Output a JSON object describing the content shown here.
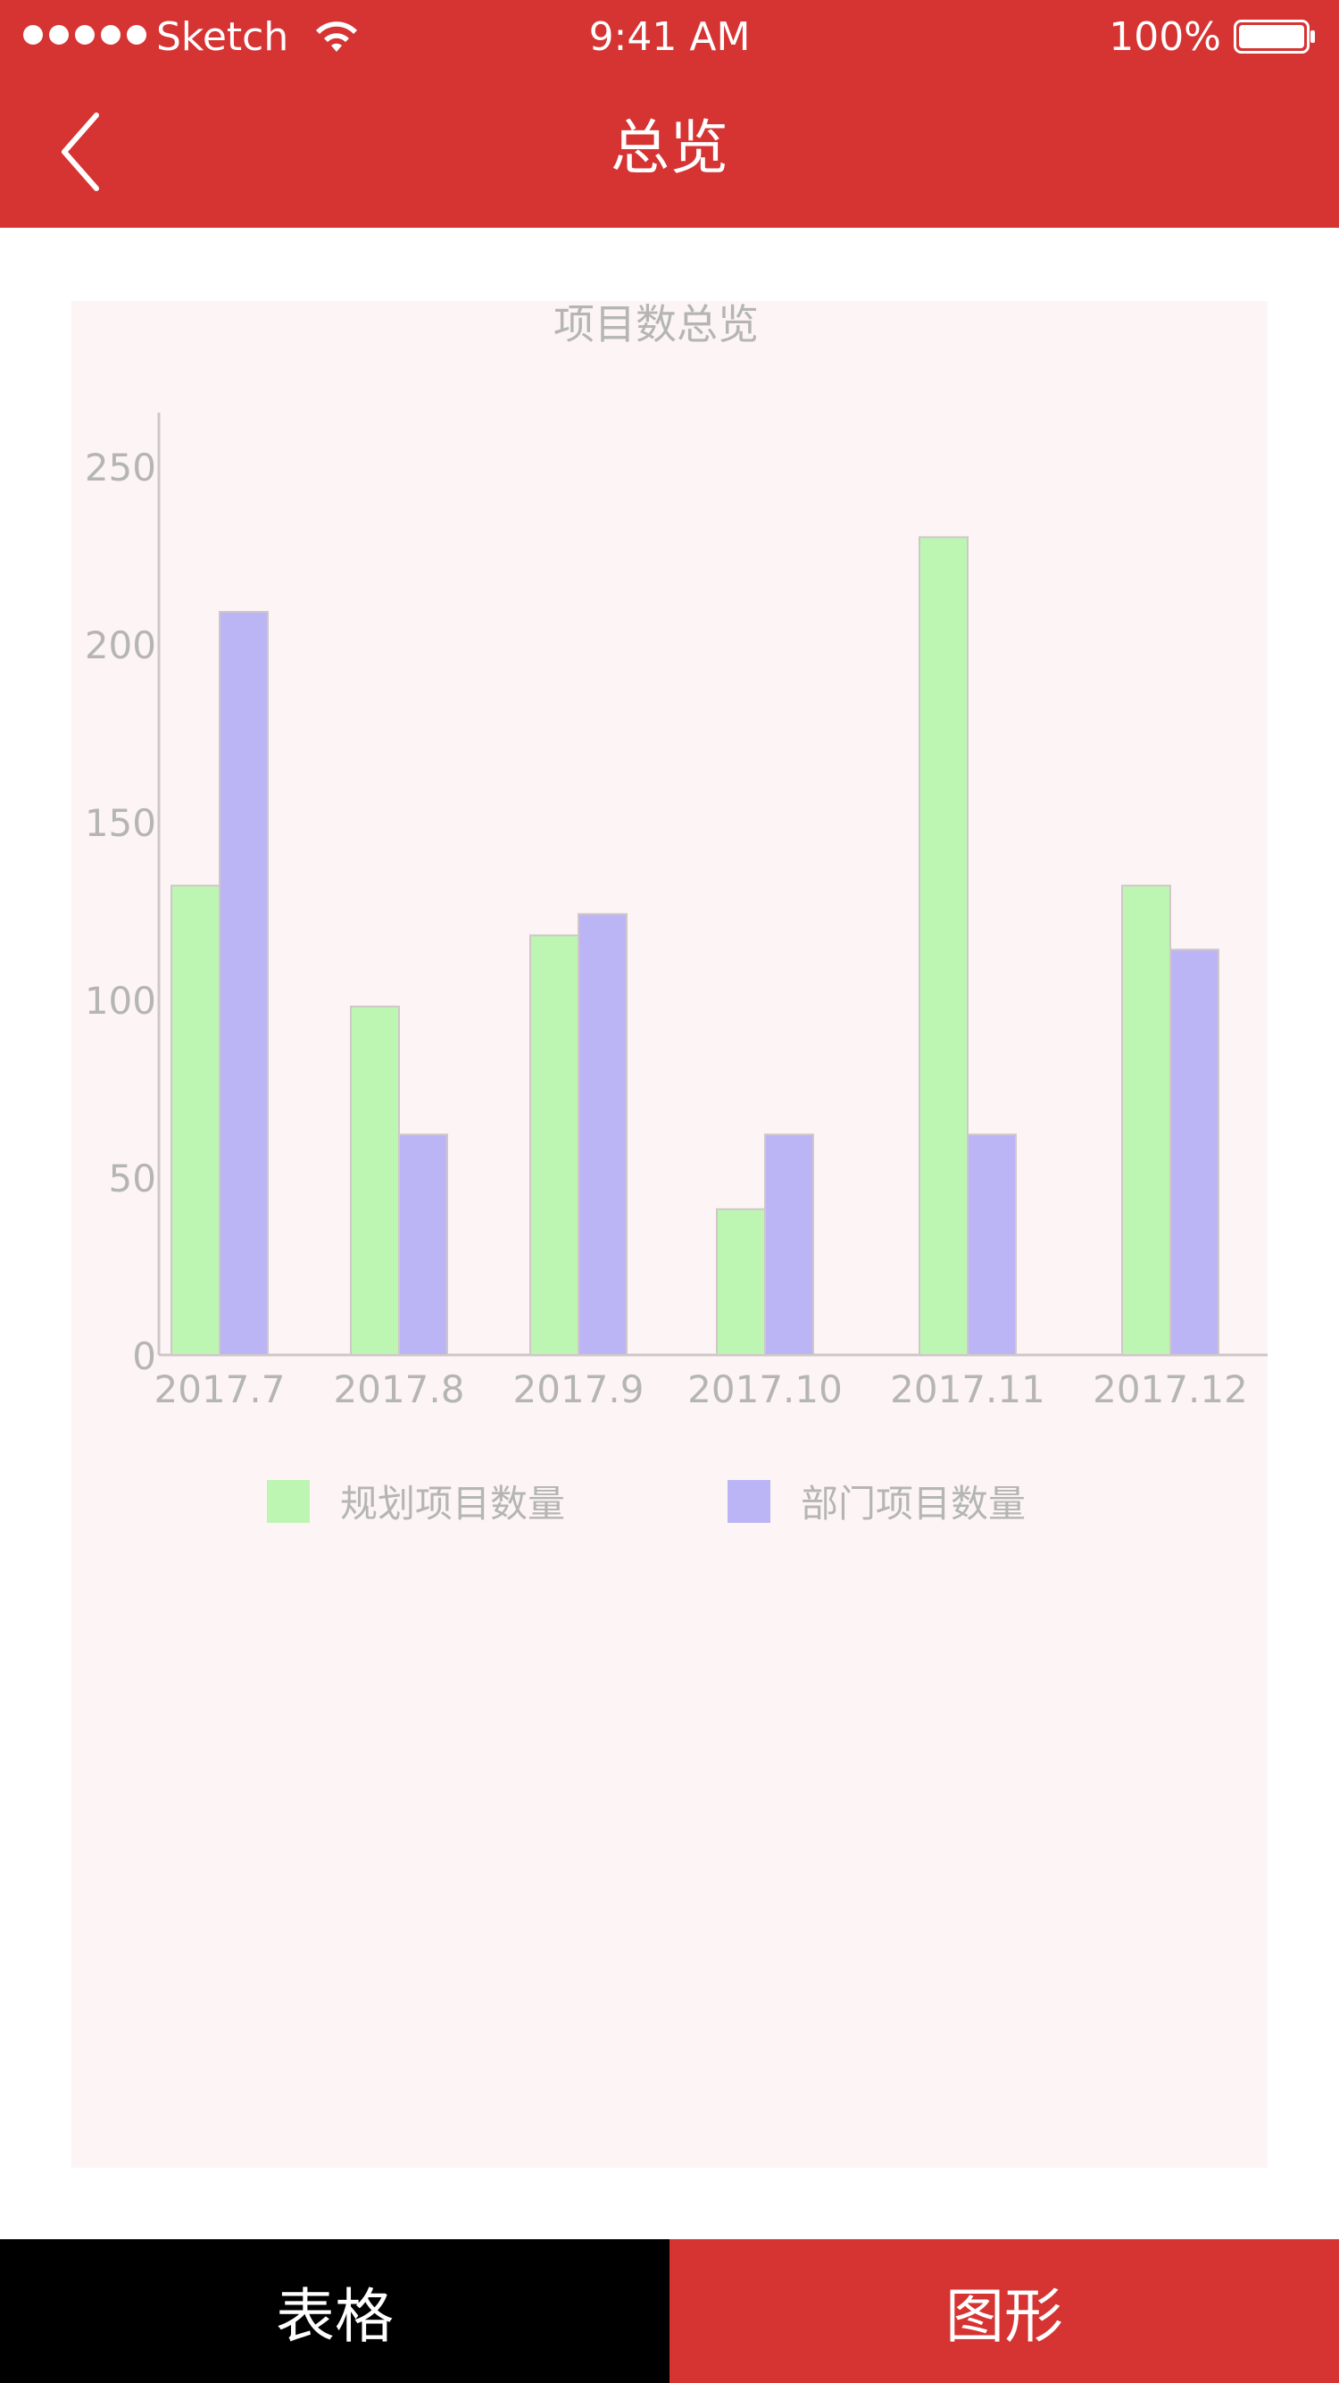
{
  "status_bar": {
    "carrier": "Sketch",
    "time": "9:41 AM",
    "battery": "100%"
  },
  "nav": {
    "title": "总览",
    "back_icon": "chevron-left-icon"
  },
  "colors": {
    "brand": "#d63333",
    "panel_bg": "#fdf4f5",
    "series_planned": "#bdf5b3",
    "series_department": "#bbb5f6",
    "axis_text": "#b5b5b5",
    "tab_table_bg": "#000000"
  },
  "chart_data": {
    "type": "bar",
    "title": "项目数总览",
    "xlabel": "",
    "ylabel": "",
    "categories": [
      "2017.7",
      "2017.8",
      "2017.9",
      "2017.10",
      "2017.11",
      "2017.12"
    ],
    "series": [
      {
        "name": "规划项目数量",
        "color": "#bdf5b3",
        "values": [
          132,
          98,
          118,
          41,
          230,
          132
        ]
      },
      {
        "name": "部门项目数量",
        "color": "#bbb5f6",
        "values": [
          209,
          62,
          124,
          62,
          62,
          114
        ]
      }
    ],
    "ylim": [
      0,
      260
    ],
    "yticks": [
      "0",
      "50",
      "100",
      "150",
      "200",
      "250"
    ],
    "legend": "bottom",
    "grid": false
  },
  "tabs": [
    {
      "label": "表格",
      "active": false
    },
    {
      "label": "图形",
      "active": true
    }
  ]
}
